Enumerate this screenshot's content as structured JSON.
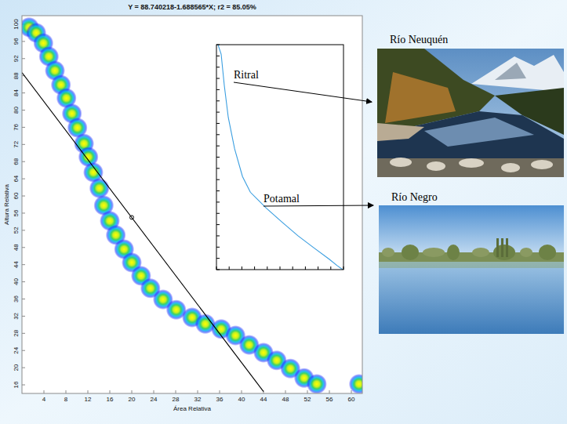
{
  "chart_data": [
    {
      "type": "scatter",
      "title": "Y = 88.740218-1.688565*X; r2 = 85.05%",
      "x_label": "Área Relativa",
      "y_label": "Altura Relativa",
      "xlim": [
        0,
        62
      ],
      "ylim": [
        14,
        102
      ],
      "xticks": [
        4,
        8,
        12,
        16,
        20,
        24,
        28,
        32,
        36,
        40,
        44,
        48,
        52,
        56,
        60
      ],
      "yticks": [
        16,
        20,
        24,
        28,
        32,
        36,
        40,
        44,
        48,
        52,
        56,
        60,
        64,
        68,
        72,
        76,
        80,
        84,
        88,
        92,
        96,
        100
      ],
      "grid": false,
      "series": [
        {
          "type": "scatter",
          "marker": "heat",
          "x": [
            1.3,
            2.6,
            3.9,
            4.9,
            6.0,
            7.1,
            8.1,
            9.1,
            10.1,
            11.3,
            12.1,
            13.0,
            14.1,
            14.9,
            16.0,
            17.1,
            18.6,
            20.0,
            21.7,
            23.4,
            25.7,
            28.1,
            31.0,
            33.4,
            36.3,
            38.9,
            41.4,
            44.0,
            46.4,
            48.9,
            51.4,
            53.7,
            61.4
          ],
          "values": [
            99.3,
            98.0,
            95.6,
            92.5,
            89.2,
            85.9,
            82.8,
            79.2,
            75.9,
            72.2,
            69.1,
            65.5,
            61.8,
            57.8,
            54.2,
            50.9,
            47.6,
            44.5,
            41.4,
            38.5,
            35.9,
            33.5,
            31.7,
            30.2,
            29.0,
            27.5,
            25.3,
            23.5,
            21.7,
            19.8,
            17.6,
            16.2,
            16.2
          ]
        },
        {
          "type": "line",
          "color": "#000000",
          "line_style": "solid",
          "x": [
            0,
            44
          ],
          "values": [
            88.74,
            14.44
          ]
        },
        {
          "type": "scatter",
          "marker": "circle",
          "color": "#000000",
          "x": [
            20
          ],
          "values": [
            55
          ]
        }
      ]
    },
    {
      "type": "line",
      "xlim": [
        0,
        100
      ],
      "ylim": [
        0,
        100
      ],
      "xticks": [
        0,
        10,
        20,
        30,
        40,
        50,
        60,
        70,
        80,
        90,
        100
      ],
      "yticks": [
        0,
        5,
        10,
        15,
        20,
        25,
        30,
        35,
        40,
        45,
        50,
        55,
        60,
        65,
        70,
        75,
        80,
        85,
        90,
        95,
        100
      ],
      "tick_labels": false,
      "grid": false,
      "series": [
        {
          "color": "#3a9ee0",
          "line_style": "solid",
          "x": [
            1.2,
            3.7,
            6.2,
            9.3,
            14.3,
            20.5,
            26.7,
            39.1,
            51.6,
            64.0,
            76.4,
            88.8,
            95.0,
            99.4
          ],
          "values": [
            100,
            95.8,
            81.8,
            67.7,
            53.7,
            41.4,
            34.4,
            27.4,
            21.1,
            15.1,
            9.8,
            4.6,
            1.8,
            0
          ]
        }
      ],
      "annotations": [
        "Ritral",
        "Potamal"
      ]
    }
  ],
  "photos": [
    {
      "caption": "Río Neuquén"
    },
    {
      "caption": "Río Negro"
    }
  ]
}
